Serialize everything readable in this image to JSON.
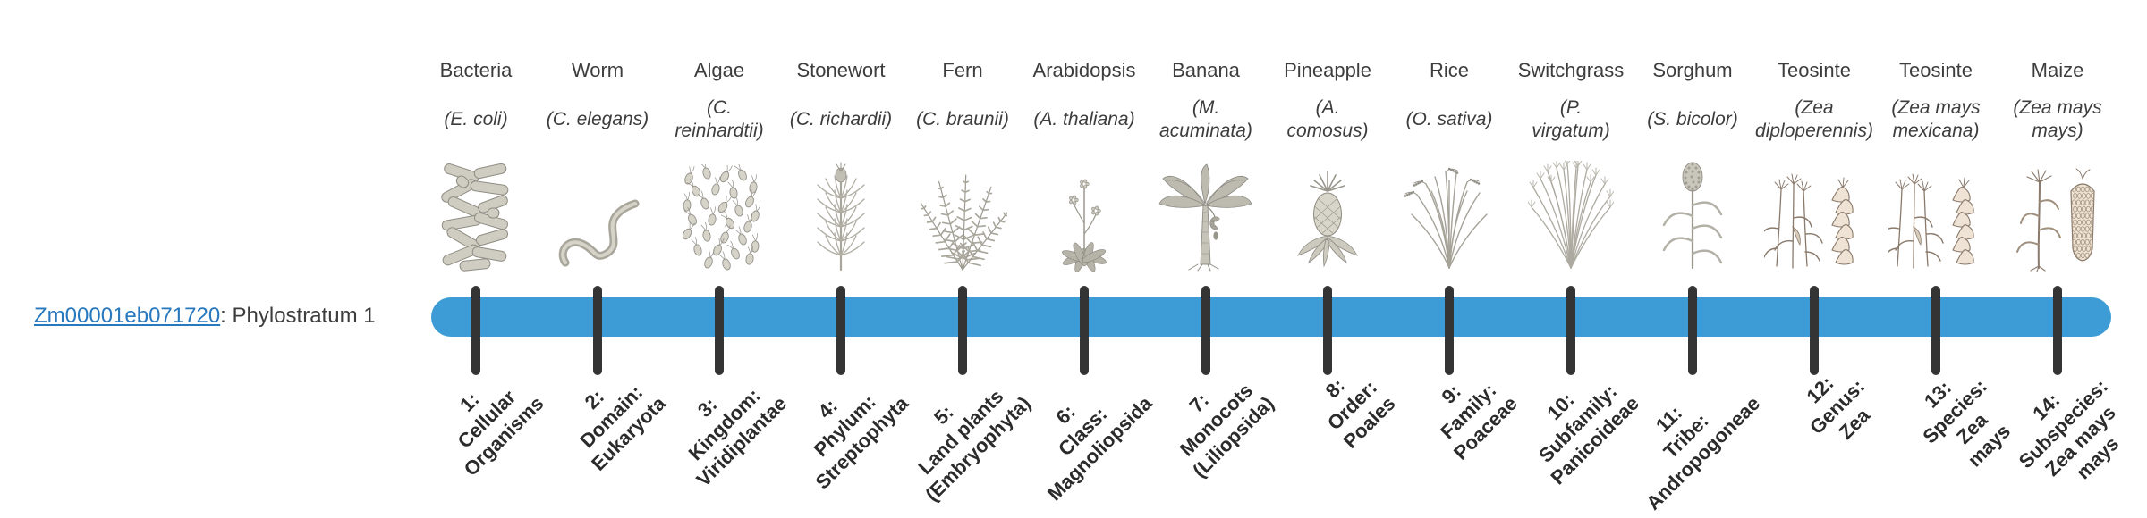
{
  "caption": {
    "gene_id": "Zm00001eb071720",
    "suffix": ": Phylostratum 1"
  },
  "colors": {
    "bar": "#3d9bd5",
    "tick": "#343434",
    "link": "#2878be",
    "text": "#3d3d3d",
    "stage_text": "#2b2b2b"
  },
  "columns": [
    {
      "name": "Bacteria",
      "species_lines": [
        "(E. coli)"
      ],
      "icon": "bacteria-icon",
      "stage_lines": [
        "1:",
        "Cellular",
        "Organisms"
      ]
    },
    {
      "name": "Worm",
      "species_lines": [
        "(C. elegans)"
      ],
      "icon": "worm-icon",
      "stage_lines": [
        "2:",
        "Domain:",
        "Eukaryota"
      ]
    },
    {
      "name": "Algae",
      "species_lines": [
        "(C.",
        "reinhardtii)"
      ],
      "icon": "algae-icon",
      "stage_lines": [
        "3:",
        "Kingdom:",
        "Viridiplantae"
      ]
    },
    {
      "name": "Stonewort",
      "species_lines": [
        "(C. richardii)"
      ],
      "icon": "stonewort-icon",
      "stage_lines": [
        "4:",
        "Phylum:",
        "Streptophyta"
      ]
    },
    {
      "name": "Fern",
      "species_lines": [
        "(C. braunii)"
      ],
      "icon": "fern-icon",
      "stage_lines": [
        "5:",
        "Land plants",
        "(Embryophyta)"
      ]
    },
    {
      "name": "Arabidopsis",
      "species_lines": [
        "(A. thaliana)"
      ],
      "icon": "arabidopsis-icon",
      "stage_lines": [
        "6:",
        "Class:",
        "Magnoliopsida"
      ]
    },
    {
      "name": "Banana",
      "species_lines": [
        "(M.",
        "acuminata)"
      ],
      "icon": "banana-icon",
      "stage_lines": [
        "7:",
        "Monocots",
        "(Liliopsida)"
      ]
    },
    {
      "name": "Pineapple",
      "species_lines": [
        "(A.",
        "comosus)"
      ],
      "icon": "pineapple-icon",
      "stage_lines": [
        "8:",
        "Order:",
        "Poales"
      ]
    },
    {
      "name": "Rice",
      "species_lines": [
        "(O. sativa)"
      ],
      "icon": "rice-icon",
      "stage_lines": [
        "9:",
        "Family:",
        "Poaceae"
      ]
    },
    {
      "name": "Switchgrass",
      "species_lines": [
        "(P.",
        "virgatum)"
      ],
      "icon": "switchgrass-icon",
      "stage_lines": [
        "10:",
        "Subfamily:",
        "Panicoideae"
      ]
    },
    {
      "name": "Sorghum",
      "species_lines": [
        "(S. bicolor)"
      ],
      "icon": "sorghum-icon",
      "stage_lines": [
        "11:",
        "Tribe:",
        "Andropogoneae"
      ]
    },
    {
      "name": "Teosinte",
      "species_lines": [
        "(Zea",
        "diploperennis)"
      ],
      "icon": "teosinte-diploperennis-icon",
      "stage_lines": [
        "12:",
        "Genus:",
        "Zea"
      ]
    },
    {
      "name": "Teosinte",
      "species_lines": [
        "(Zea mays",
        "mexicana)"
      ],
      "icon": "teosinte-mexicana-icon",
      "stage_lines": [
        "13:",
        "Species:",
        "Zea",
        "mays"
      ]
    },
    {
      "name": "Maize",
      "species_lines": [
        "(Zea mays",
        "mays)"
      ],
      "icon": "maize-icon",
      "stage_lines": [
        "14:",
        "Subspecies:",
        "Zea mays",
        "mays"
      ]
    }
  ]
}
